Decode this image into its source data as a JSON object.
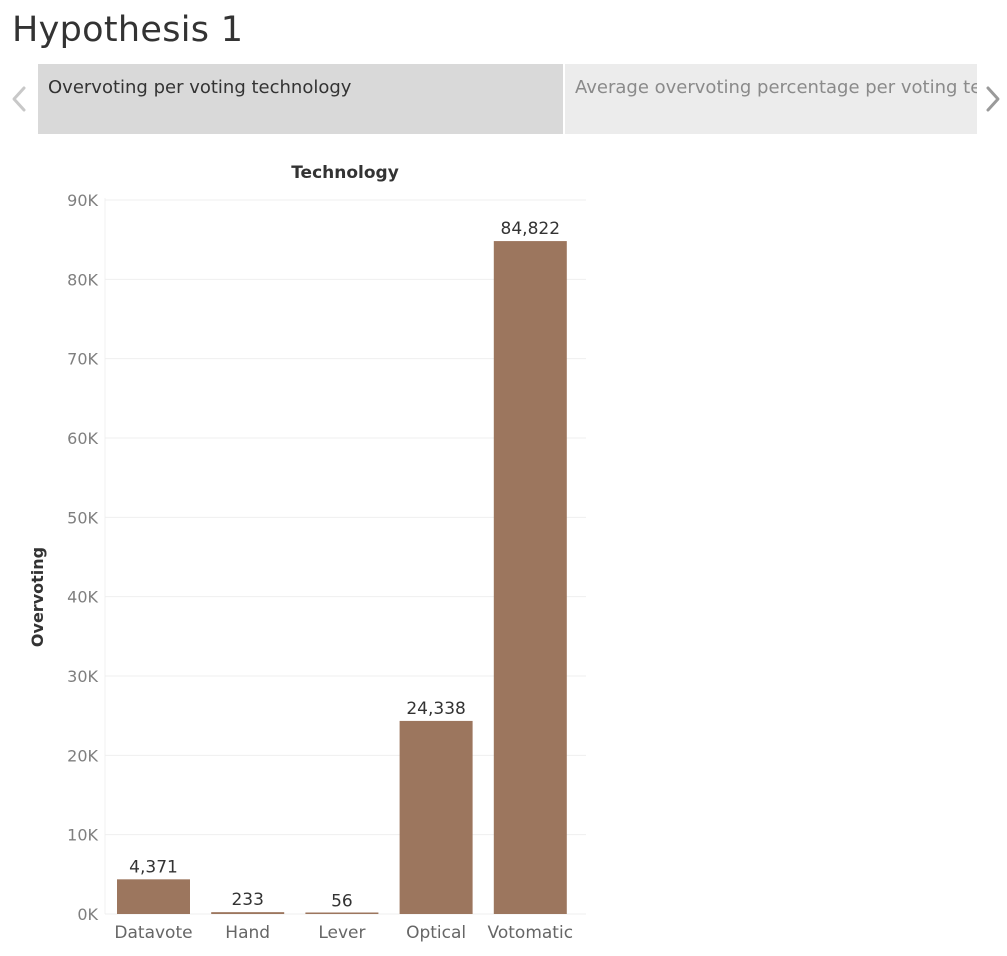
{
  "page": {
    "title": "Hypothesis 1"
  },
  "story": {
    "points": [
      {
        "label": "Overvoting per voting technology",
        "active": true
      },
      {
        "label": "Average overvoting percentage per voting technology",
        "active": false
      }
    ],
    "prev_icon": "chevron-left-icon",
    "next_icon": "chevron-right-icon"
  },
  "colors": {
    "bar": "#9c765e",
    "grid": "#efefef",
    "tick_text": "#7f7f7f",
    "label_text": "#333333",
    "active_tab": "#d9d9d9",
    "inactive_tab": "#ececec"
  },
  "chart_data": {
    "type": "bar",
    "title": "Technology",
    "xlabel": "",
    "ylabel": "Overvoting",
    "categories": [
      "Datavote",
      "Hand",
      "Lever",
      "Optical",
      "Votomatic"
    ],
    "values": [
      4371,
      233,
      56,
      24338,
      84822
    ],
    "value_labels": [
      "4,371",
      "233",
      "56",
      "24,338",
      "84,822"
    ],
    "ylim": [
      0,
      90000
    ],
    "yticks": [
      0,
      10000,
      20000,
      30000,
      40000,
      50000,
      60000,
      70000,
      80000,
      90000
    ],
    "ytick_labels": [
      "0K",
      "10K",
      "20K",
      "30K",
      "40K",
      "50K",
      "60K",
      "70K",
      "80K",
      "90K"
    ],
    "grid": true,
    "legend": "none"
  }
}
